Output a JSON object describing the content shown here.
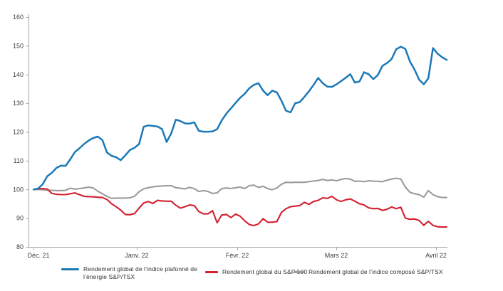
{
  "chart_data": {
    "type": "line",
    "title": "",
    "xlabel": "",
    "ylabel": "",
    "ylim": [
      80,
      160
    ],
    "grid": false,
    "legend_position": "bottom",
    "x_axis": {
      "tick_labels": [
        "Déc. 21",
        "Janv. 22",
        "Févr. 22",
        "Mars 22",
        "Avril 22"
      ]
    },
    "y_axis": {
      "min": 80,
      "max": 160,
      "step": 10,
      "tick_labels": [
        "80",
        "90",
        "100",
        "110",
        "120",
        "130",
        "140",
        "150",
        "160"
      ]
    },
    "series": [
      {
        "name": "Rendement global de l’indice plafonné de l’énergie S&P/TSX",
        "color": "#1b79b7",
        "values": [
          100,
          100.3,
          101.8,
          104.6,
          105.8,
          107.5,
          108.3,
          108.2,
          110.5,
          113,
          114.3,
          115.8,
          117,
          117.9,
          118.4,
          117.2,
          112.9,
          111.7,
          111.2,
          110.2,
          111.9,
          113.7,
          114.5,
          115.8,
          121.8,
          122.3,
          122.1,
          121.9,
          121,
          116.5,
          119.5,
          124.3,
          123.8,
          123,
          122.9,
          123.4,
          120.4,
          120.1,
          120.1,
          120.2,
          121,
          124,
          126.4,
          128.2,
          130.1,
          131.9,
          133.3,
          135.2,
          136.4,
          137,
          134.4,
          132.8,
          134.4,
          133.8,
          130.9,
          127.4,
          126.8,
          130,
          130.4,
          132.2,
          134.2,
          136.4,
          138.8,
          137,
          135.8,
          135.7,
          136.6,
          137.7,
          138.9,
          140.1,
          137.2,
          137.6,
          140.8,
          140.1,
          138.4,
          139.8,
          143,
          144,
          145.4,
          148.8,
          149.7,
          148.9,
          144.5,
          141.7,
          138.2,
          136.6,
          138.7,
          149.2,
          147.3,
          146,
          145.1
        ]
      },
      {
        "name": "Rendement global du S&P 500",
        "color": "#d3202f",
        "values": [
          100,
          100.2,
          100.3,
          100.1,
          98.6,
          98.3,
          98.2,
          98.2,
          98.5,
          98.8,
          98.2,
          97.6,
          97.5,
          97.4,
          97.3,
          97.2,
          96.5,
          95,
          94,
          92.8,
          91.3,
          91.2,
          91.6,
          93.5,
          95.3,
          95.8,
          95.1,
          96.2,
          96,
          95.9,
          95.9,
          94.5,
          93.5,
          94,
          94.6,
          94.4,
          92.3,
          91.5,
          91.5,
          92.6,
          88.4,
          91.1,
          91.3,
          90.2,
          91.4,
          90.7,
          89.1,
          87.8,
          87.4,
          88,
          89.8,
          88.6,
          88.6,
          88.8,
          92,
          93.3,
          94,
          94.2,
          94.4,
          95.5,
          94.8,
          95.8,
          96.2,
          97.1,
          96.9,
          97.6,
          96.4,
          95.8,
          96.4,
          96.7,
          95.9,
          95,
          94.6,
          93.6,
          93.3,
          93.4,
          92.7,
          93.1,
          93.9,
          93.3,
          93.8,
          90,
          89.6,
          89.7,
          89.2,
          87.5,
          88.9,
          87.5,
          87,
          86.9,
          86.9
        ]
      },
      {
        "name": "Rendement global de l’indice composé S&P/TSX",
        "color": "#9b9b9b",
        "values": [
          100,
          100,
          99.9,
          99.8,
          99.7,
          99.6,
          99.6,
          99.7,
          100.4,
          100.1,
          100.3,
          100.5,
          100.8,
          100.5,
          99.4,
          98.5,
          97.6,
          96.9,
          97,
          97,
          97,
          97.1,
          97.6,
          99.2,
          100.2,
          100.6,
          100.9,
          101.1,
          101.2,
          101.3,
          101.3,
          100.6,
          100.4,
          100.2,
          100.7,
          100.3,
          99.3,
          99.6,
          99.3,
          98.6,
          98.8,
          100.3,
          100.5,
          100.3,
          100.6,
          100.8,
          100.3,
          101.3,
          101.5,
          100.7,
          101.1,
          100.3,
          99.9,
          100.5,
          101.8,
          102.5,
          102.4,
          102.5,
          102.5,
          102.5,
          102.7,
          102.9,
          103.1,
          103.5,
          103.1,
          103.3,
          103,
          103.5,
          103.8,
          103.6,
          102.8,
          102.9,
          102.7,
          103,
          102.9,
          102.8,
          102.7,
          103.2,
          103.6,
          103.9,
          103.6,
          100.8,
          99,
          98.5,
          98.2,
          97.3,
          99.6,
          98.2,
          97.5,
          97.2,
          97.2
        ]
      }
    ],
    "axis_color": "#a6a6a6",
    "tick_label_color": "#404040"
  }
}
